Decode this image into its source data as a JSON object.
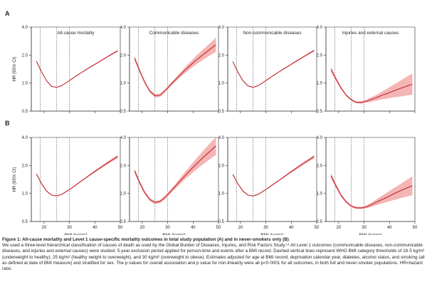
{
  "rows": [
    {
      "label": "A"
    },
    {
      "label": "B"
    }
  ],
  "panels": [
    {
      "title": "All-cause mortality"
    },
    {
      "title": "Communicable diseases"
    },
    {
      "title": "Non-communicable diseases"
    },
    {
      "title": "Injuries and external causes"
    }
  ],
  "chart_data": [
    {
      "type": "line",
      "row": "A",
      "title": "All-cause mortality",
      "xlabel": "",
      "ylabel": "HR (95% CI)",
      "x_ticks": [],
      "y_ticks": [
        "0.5",
        "1.0",
        "2.0",
        "4.0"
      ],
      "y_log": true,
      "xlim": [
        15,
        50
      ],
      "ylim": [
        0.5,
        4.0
      ],
      "reference_lines_x": [
        18.5,
        25,
        30
      ],
      "series": [
        {
          "x": [
            17,
            19,
            21,
            23,
            25,
            27,
            29,
            31,
            33,
            35,
            37,
            39,
            41,
            43,
            45,
            47,
            49
          ],
          "y": [
            1.72,
            1.32,
            1.06,
            0.92,
            0.9,
            0.94,
            1.02,
            1.11,
            1.21,
            1.31,
            1.42,
            1.53,
            1.65,
            1.78,
            1.92,
            2.07,
            2.22
          ],
          "lower": [
            1.69,
            1.3,
            1.05,
            0.915,
            0.895,
            0.935,
            1.015,
            1.1,
            1.2,
            1.3,
            1.4,
            1.51,
            1.63,
            1.75,
            1.89,
            2.03,
            2.17
          ],
          "upper": [
            1.75,
            1.34,
            1.07,
            0.925,
            0.905,
            0.945,
            1.025,
            1.12,
            1.22,
            1.32,
            1.44,
            1.55,
            1.67,
            1.81,
            1.95,
            2.11,
            2.27
          ]
        }
      ]
    },
    {
      "type": "line",
      "row": "A",
      "title": "Communicable diseases",
      "xlabel": "",
      "ylabel": "",
      "x_ticks": [],
      "y_ticks": [
        "0.5",
        "1.0",
        "2.0",
        "4.0"
      ],
      "y_log": true,
      "xlim": [
        15,
        50
      ],
      "ylim": [
        0.5,
        4.0
      ],
      "reference_lines_x": [
        18.5,
        25,
        30
      ],
      "series": [
        {
          "x": [
            17,
            19,
            21,
            23,
            25,
            27,
            29,
            31,
            33,
            35,
            37,
            39,
            41,
            43,
            45,
            47,
            49
          ],
          "y": [
            1.85,
            1.35,
            1.02,
            0.82,
            0.73,
            0.74,
            0.83,
            0.95,
            1.08,
            1.23,
            1.39,
            1.56,
            1.74,
            1.93,
            2.13,
            2.35,
            2.58
          ],
          "lower": [
            1.75,
            1.29,
            0.98,
            0.79,
            0.7,
            0.71,
            0.8,
            0.91,
            1.03,
            1.16,
            1.29,
            1.43,
            1.57,
            1.71,
            1.86,
            2.01,
            2.16
          ],
          "upper": [
            1.96,
            1.42,
            1.06,
            0.85,
            0.76,
            0.77,
            0.86,
            0.99,
            1.13,
            1.3,
            1.5,
            1.7,
            1.93,
            2.18,
            2.44,
            2.74,
            3.08
          ]
        }
      ]
    },
    {
      "type": "line",
      "row": "A",
      "title": "Non-communicable diseases",
      "xlabel": "",
      "ylabel": "",
      "x_ticks": [],
      "y_ticks": [
        "0.5",
        "1.0",
        "2.0",
        "4.0"
      ],
      "y_log": true,
      "xlim": [
        15,
        50
      ],
      "ylim": [
        0.5,
        4.0
      ],
      "reference_lines_x": [
        18.5,
        25,
        30
      ],
      "series": [
        {
          "x": [
            17,
            19,
            21,
            23,
            25,
            27,
            29,
            31,
            33,
            35,
            37,
            39,
            41,
            43,
            45,
            47,
            49
          ],
          "y": [
            1.7,
            1.31,
            1.06,
            0.93,
            0.9,
            0.94,
            1.02,
            1.11,
            1.21,
            1.31,
            1.42,
            1.53,
            1.66,
            1.79,
            1.93,
            2.08,
            2.24
          ],
          "lower": [
            1.67,
            1.29,
            1.05,
            0.925,
            0.895,
            0.935,
            1.015,
            1.1,
            1.2,
            1.3,
            1.4,
            1.51,
            1.63,
            1.76,
            1.9,
            2.04,
            2.19
          ],
          "upper": [
            1.73,
            1.33,
            1.07,
            0.935,
            0.905,
            0.945,
            1.025,
            1.12,
            1.22,
            1.32,
            1.44,
            1.55,
            1.69,
            1.82,
            1.96,
            2.12,
            2.29
          ]
        }
      ]
    },
    {
      "type": "line",
      "row": "A",
      "title": "Injuries and external causes",
      "xlabel": "",
      "ylabel": "",
      "x_ticks": [],
      "y_ticks": [
        "0.5",
        "1.0",
        "2.0",
        "4.0"
      ],
      "y_log": true,
      "xlim": [
        15,
        50
      ],
      "ylim": [
        0.5,
        4.0
      ],
      "reference_lines_x": [
        18.5,
        25,
        30
      ],
      "series": [
        {
          "x": [
            17,
            19,
            21,
            23,
            25,
            27,
            29,
            31,
            33,
            35,
            37,
            39,
            41,
            43,
            45,
            47,
            49
          ],
          "y": [
            1.4,
            1.1,
            0.88,
            0.74,
            0.66,
            0.62,
            0.62,
            0.64,
            0.67,
            0.7,
            0.74,
            0.77,
            0.81,
            0.85,
            0.89,
            0.93,
            0.97
          ],
          "lower": [
            1.32,
            1.05,
            0.85,
            0.72,
            0.645,
            0.605,
            0.6,
            0.615,
            0.63,
            0.65,
            0.67,
            0.68,
            0.7,
            0.71,
            0.72,
            0.74,
            0.75
          ],
          "upper": [
            1.49,
            1.16,
            0.91,
            0.76,
            0.675,
            0.635,
            0.64,
            0.665,
            0.71,
            0.75,
            0.81,
            0.87,
            0.94,
            1.01,
            1.09,
            1.18,
            1.27
          ]
        }
      ]
    },
    {
      "type": "line",
      "row": "B",
      "title": "",
      "xlabel": "BMI (kg/m²)",
      "ylabel": "HR (95% CI)",
      "x_ticks": [
        "20",
        "30",
        "40",
        "50"
      ],
      "y_ticks": [
        "0.5",
        "1.0",
        "2.0",
        "4.0"
      ],
      "y_log": true,
      "xlim": [
        15,
        50
      ],
      "ylim": [
        0.5,
        4.0
      ],
      "reference_lines_x": [
        18.5,
        25,
        30
      ],
      "series": [
        {
          "x": [
            17,
            19,
            21,
            23,
            25,
            27,
            29,
            31,
            33,
            35,
            37,
            39,
            41,
            43,
            45,
            47,
            49
          ],
          "y": [
            1.62,
            1.28,
            1.06,
            0.96,
            0.94,
            0.98,
            1.06,
            1.15,
            1.26,
            1.38,
            1.51,
            1.65,
            1.8,
            1.96,
            2.13,
            2.31,
            2.5
          ],
          "lower": [
            1.58,
            1.26,
            1.05,
            0.955,
            0.935,
            0.975,
            1.05,
            1.14,
            1.24,
            1.36,
            1.48,
            1.61,
            1.75,
            1.9,
            2.06,
            2.22,
            2.39
          ],
          "upper": [
            1.66,
            1.3,
            1.07,
            0.965,
            0.945,
            0.985,
            1.07,
            1.16,
            1.28,
            1.4,
            1.54,
            1.69,
            1.85,
            2.02,
            2.2,
            2.4,
            2.61
          ]
        }
      ]
    },
    {
      "type": "line",
      "row": "B",
      "title": "",
      "xlabel": "BMI (kg/m²)",
      "ylabel": "",
      "x_ticks": [
        "20",
        "30",
        "40",
        "50"
      ],
      "y_ticks": [
        "0.5",
        "1.0",
        "2.0",
        "4.0"
      ],
      "y_log": true,
      "xlim": [
        15,
        50
      ],
      "ylim": [
        0.5,
        4.0
      ],
      "reference_lines_x": [
        18.5,
        25,
        30
      ],
      "series": [
        {
          "x": [
            17,
            19,
            21,
            23,
            25,
            27,
            29,
            31,
            33,
            35,
            37,
            39,
            41,
            43,
            45,
            47,
            49
          ],
          "y": [
            1.75,
            1.3,
            1.02,
            0.86,
            0.8,
            0.82,
            0.91,
            1.04,
            1.19,
            1.37,
            1.57,
            1.79,
            2.03,
            2.3,
            2.59,
            2.9,
            3.24
          ],
          "lower": [
            1.65,
            1.24,
            0.98,
            0.83,
            0.77,
            0.79,
            0.87,
            0.99,
            1.12,
            1.27,
            1.43,
            1.6,
            1.78,
            1.97,
            2.17,
            2.38,
            2.6
          ],
          "upper": [
            1.86,
            1.37,
            1.06,
            0.89,
            0.83,
            0.85,
            0.95,
            1.09,
            1.26,
            1.48,
            1.72,
            2.0,
            2.32,
            2.68,
            3.09,
            3.54,
            4.04
          ]
        }
      ]
    },
    {
      "type": "line",
      "row": "B",
      "title": "",
      "xlabel": "BMI (kg/m²)",
      "ylabel": "",
      "x_ticks": [
        "20",
        "30",
        "40",
        "50"
      ],
      "y_ticks": [
        "0.5",
        "1.0",
        "2.0",
        "4.0"
      ],
      "y_log": true,
      "xlim": [
        15,
        50
      ],
      "ylim": [
        0.5,
        4.0
      ],
      "reference_lines_x": [
        18.5,
        25,
        30
      ],
      "series": [
        {
          "x": [
            17,
            19,
            21,
            23,
            25,
            27,
            29,
            31,
            33,
            35,
            37,
            39,
            41,
            43,
            45,
            47,
            49
          ],
          "y": [
            1.6,
            1.27,
            1.06,
            0.96,
            0.94,
            0.98,
            1.06,
            1.15,
            1.26,
            1.37,
            1.5,
            1.64,
            1.79,
            1.95,
            2.12,
            2.3,
            2.49
          ],
          "lower": [
            1.56,
            1.25,
            1.05,
            0.955,
            0.935,
            0.975,
            1.05,
            1.14,
            1.24,
            1.35,
            1.47,
            1.6,
            1.74,
            1.89,
            2.05,
            2.21,
            2.38
          ],
          "upper": [
            1.64,
            1.29,
            1.07,
            0.965,
            0.945,
            0.985,
            1.07,
            1.16,
            1.28,
            1.39,
            1.53,
            1.68,
            1.84,
            2.01,
            2.19,
            2.39,
            2.6
          ]
        }
      ]
    },
    {
      "type": "line",
      "row": "B",
      "title": "",
      "xlabel": "BMI (kg/m²)",
      "ylabel": "",
      "x_ticks": [
        "20",
        "30",
        "40",
        "50"
      ],
      "y_ticks": [
        "0.5",
        "1.0",
        "2.0",
        "4.0"
      ],
      "y_log": true,
      "xlim": [
        15,
        50
      ],
      "ylim": [
        0.5,
        4.0
      ],
      "reference_lines_x": [
        18.5,
        25,
        30
      ],
      "series": [
        {
          "x": [
            17,
            19,
            21,
            23,
            25,
            27,
            29,
            31,
            33,
            35,
            37,
            39,
            41,
            43,
            45,
            47,
            49
          ],
          "y": [
            1.55,
            1.2,
            0.95,
            0.81,
            0.73,
            0.7,
            0.7,
            0.72,
            0.76,
            0.81,
            0.86,
            0.91,
            0.97,
            1.03,
            1.09,
            1.15,
            1.21
          ],
          "lower": [
            1.45,
            1.14,
            0.91,
            0.785,
            0.71,
            0.68,
            0.68,
            0.695,
            0.72,
            0.75,
            0.78,
            0.81,
            0.84,
            0.87,
            0.9,
            0.93,
            0.96
          ],
          "upper": [
            1.66,
            1.26,
            0.99,
            0.835,
            0.75,
            0.72,
            0.72,
            0.745,
            0.8,
            0.87,
            0.94,
            1.02,
            1.11,
            1.2,
            1.3,
            1.41,
            1.53
          ]
        }
      ]
    }
  ],
  "caption": {
    "title": "Figure 1: All-cause mortality and Level 1 cause-specific mortality outcomes in total study population (A) and in never-smokers only (B)",
    "body": "We used a three-level hierarchical classification of causes of death as used by the Global Burden of Diseases, Injuries, and Risk Factors Study.¹⁴ All Level 1 outcomes (communicable diseases, non-communicable diseases, and injuries and external causes) were studied. 5-year exclusion period applied for person-time and events after a BMI record. Dashed vertical lines represent WHO BMI category thresholds of 18·5 kg/m² (underweight to healthy), 25 kg/m² (healthy weight to overweight), and 30 kg/m² (overweight to obese). Estimates adjusted for age at BMI record, deprivation calendar year, diabetes, alcohol status, and smoking (all as defined at date of BMI measure) and stratified for sex. The p values for overall association and p value for non-linearity were all p<0·0001 for all outcomes, in both full and never-smoker populations. HR=hazard ratio."
  },
  "colors": {
    "line": "#c1272d",
    "band": "#f2a8a8",
    "axis": "#231f20",
    "refline": "#555555"
  }
}
